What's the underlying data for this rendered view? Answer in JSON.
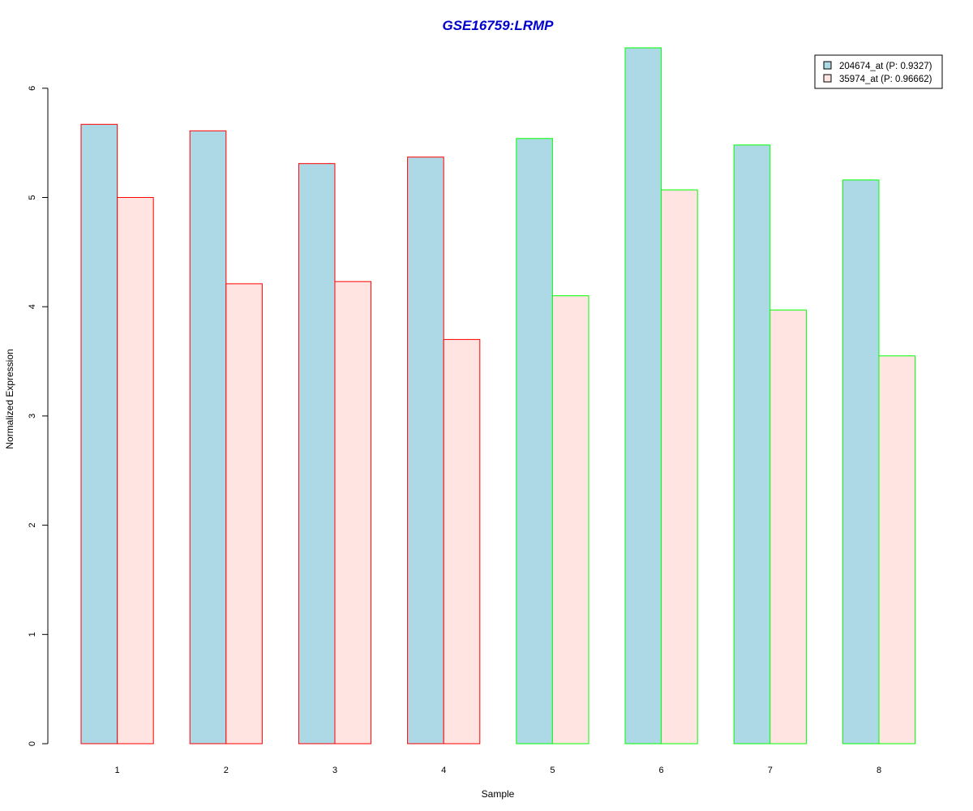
{
  "chart_data": {
    "type": "bar",
    "title": "GSE16759:LRMP",
    "xlabel": "Sample",
    "ylabel": "Normalized Expression",
    "categories": [
      "1",
      "2",
      "3",
      "4",
      "5",
      "6",
      "7",
      "8"
    ],
    "ylim": [
      0,
      6.4
    ],
    "yticks": [
      0,
      1,
      2,
      3,
      4,
      5,
      6
    ],
    "grid": false,
    "legend_position": "top-right",
    "series": [
      {
        "name": "204674_at (P: 0.9327)",
        "values": [
          5.67,
          5.61,
          5.31,
          5.37,
          5.54,
          6.37,
          5.48,
          5.16
        ],
        "fill": "#ADD8E6"
      },
      {
        "name": "35974_at (P: 0.96662)",
        "values": [
          5.0,
          4.21,
          4.23,
          3.7,
          4.1,
          5.07,
          3.97,
          3.55
        ],
        "fill": "#FFE4E1"
      }
    ],
    "group_border_colors": [
      "#FF0000",
      "#FF0000",
      "#FF0000",
      "#FF0000",
      "#00FF00",
      "#00FF00",
      "#00FF00",
      "#00FF00"
    ],
    "title_color": "#0000CC"
  }
}
